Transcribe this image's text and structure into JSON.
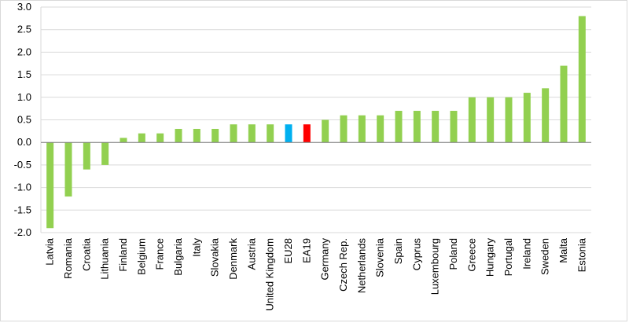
{
  "chart_data": {
    "type": "bar",
    "title": "",
    "xlabel": "",
    "ylabel": "",
    "ylim": [
      -2.0,
      3.0
    ],
    "yticks": [
      "3.0",
      "2.5",
      "2.0",
      "1.5",
      "1.0",
      "0.5",
      "0.0",
      "-0.5",
      "-1.0",
      "-1.5",
      "-2.0"
    ],
    "grid": true,
    "legend": "none",
    "colors": {
      "default": "#92d050",
      "EU28": "#00b0f0",
      "EA19": "#ff0000",
      "grid": "#d9d9d9",
      "axis": "#7f7f7f"
    },
    "categories": [
      "Latvia",
      "Romania",
      "Croatia",
      "Lithuania",
      "Finland",
      "Belgium",
      "France",
      "Bulgaria",
      "Italy",
      "Slovakia",
      "Denmark",
      "Austria",
      "United Kingdom",
      "EU28",
      "EA19",
      "Germany",
      "Czech Rep.",
      "Netherlands",
      "Slovenia",
      "Spain",
      "Cyprus",
      "Luxembourg",
      "Poland",
      "Greece",
      "Hungary",
      "Portugal",
      "Ireland",
      "Sweden",
      "Malta",
      "Estonia"
    ],
    "values": [
      -1.9,
      -1.2,
      -0.6,
      -0.5,
      0.1,
      0.2,
      0.2,
      0.3,
      0.3,
      0.3,
      0.4,
      0.4,
      0.4,
      0.4,
      0.4,
      0.5,
      0.6,
      0.6,
      0.6,
      0.7,
      0.7,
      0.7,
      0.7,
      1.0,
      1.0,
      1.0,
      1.1,
      1.2,
      1.7,
      2.8
    ]
  }
}
